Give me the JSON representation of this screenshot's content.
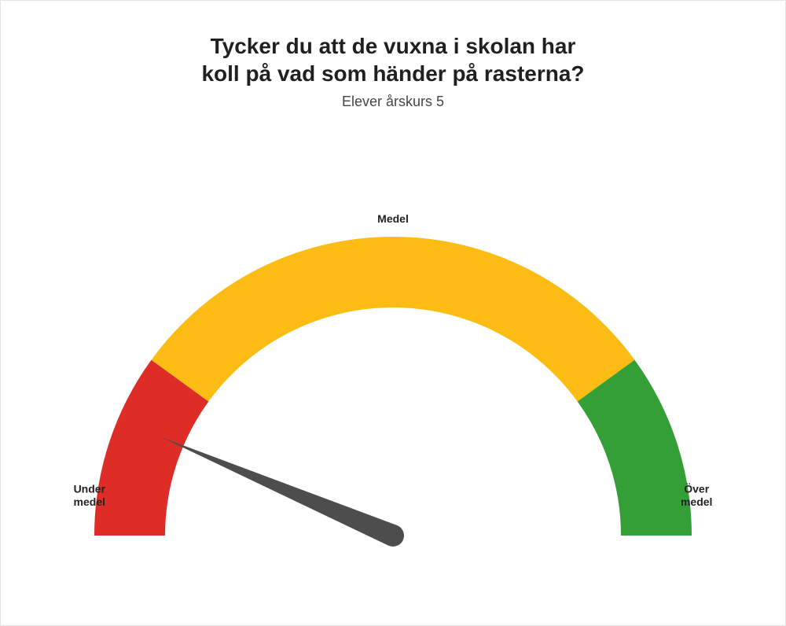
{
  "chart": {
    "type": "gauge",
    "title": "Tycker du att de vuxna i skolan har\nkoll på vad som händer på rasterna?",
    "subtitle": "Elever årskurs 5",
    "title_fontsize": 28,
    "title_fontweight": 700,
    "title_color": "#1f2022",
    "subtitle_fontsize": 18,
    "subtitle_color": "#454647",
    "background_color": "#ffffff",
    "border_color": "#e4e4e4",
    "segments": [
      {
        "label": "Under\nmedel",
        "start_deg": 180,
        "end_deg": 144,
        "color": "#dd2d26"
      },
      {
        "label": "Medel",
        "start_deg": 144,
        "end_deg": 36,
        "color": "#fdbc14"
      },
      {
        "label": "Över\nmedel",
        "start_deg": 36,
        "end_deg": 0,
        "color": "#349f37"
      }
    ],
    "outer_radius": 380,
    "inner_radius": 290,
    "needle": {
      "angle_deg": 157,
      "length": 320,
      "base_half_width": 14,
      "color": "#4d4d4d"
    },
    "label_style": {
      "fontsize": 14,
      "fontweight": 700,
      "color": "#222222"
    }
  }
}
